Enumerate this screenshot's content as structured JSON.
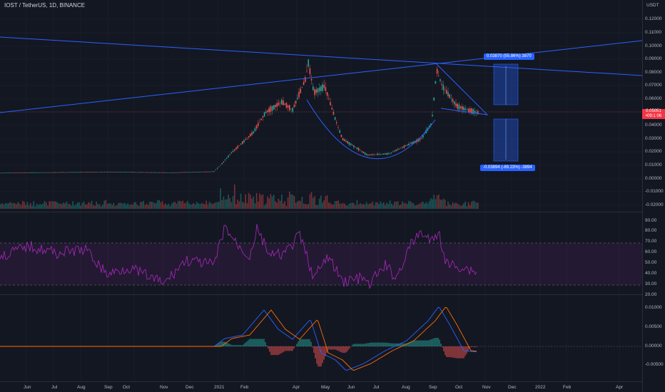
{
  "header": {
    "symbol_line": "IOST / TetherUS, 1D, BINANCE",
    "currency": "USDT"
  },
  "price_axis": [
    "0.12000",
    "0.11000",
    "0.10000",
    "0.09000",
    "0.08000",
    "0.07000",
    "0.06000",
    "0.05000",
    "0.04000",
    "0.03000",
    "0.02000",
    "0.01000",
    "0.00000",
    "-0.01000",
    "-0.02000"
  ],
  "rsi_axis": [
    "90.00",
    "80.00",
    "70.00",
    "60.00",
    "50.00",
    "40.00",
    "30.00",
    "20.00"
  ],
  "macd_axis": [
    "0.01000",
    "0.00500",
    "0.00000",
    "-0.00500"
  ],
  "time_axis": [
    "Jun",
    "Jul",
    "Aug",
    "Sep",
    "Oct",
    "Nov",
    "Dec",
    "2021",
    "Feb",
    "Apr",
    "May",
    "Jun",
    "Jul",
    "Aug",
    "Sep",
    "Oct",
    "Nov",
    "Dec",
    "2022",
    "Feb",
    "Apr"
  ],
  "last_price": {
    "value": "0.05051",
    "sub": "•09:1 06"
  },
  "callouts": {
    "upper": "0.03870 (55.86%) 3870",
    "lower": "-0.03894 (-89.23%) -3894"
  },
  "colors": {
    "bg": "#131722",
    "up": "#26a69a",
    "down": "#ef5350",
    "trend": "#2962ff",
    "rsi": "#9c27b0",
    "macd": "#2962ff",
    "signal": "#ff6d00"
  },
  "chart_data": {
    "type": "candlestick",
    "symbol": "IOST / TetherUS",
    "interval": "1D",
    "exchange": "BINANCE",
    "price_close": [
      [
        "2020-06",
        0.0042
      ],
      [
        "2020-07",
        0.0045
      ],
      [
        "2020-08",
        0.005
      ],
      [
        "2020-09",
        0.0049
      ],
      [
        "2020-10",
        0.0046
      ],
      [
        "2020-11",
        0.0045
      ],
      [
        "2020-12",
        0.005
      ],
      [
        "2021-01",
        0.011
      ],
      [
        "2021-02",
        0.04
      ],
      [
        "2021-03",
        0.052
      ],
      [
        "2021-04",
        0.078
      ],
      [
        "2021-05",
        0.048
      ],
      [
        "2021-06",
        0.026
      ],
      [
        "2021-07",
        0.018
      ],
      [
        "2021-08",
        0.026
      ],
      [
        "2021-09",
        0.06
      ],
      [
        "2021-10",
        0.0505
      ]
    ],
    "price_ylim": [
      -0.02,
      0.125
    ],
    "rsi_ylim": [
      20,
      95
    ],
    "rsi_levels": [
      30,
      70
    ],
    "macd_ylim": [
      -0.0075,
      0.0125
    ]
  }
}
